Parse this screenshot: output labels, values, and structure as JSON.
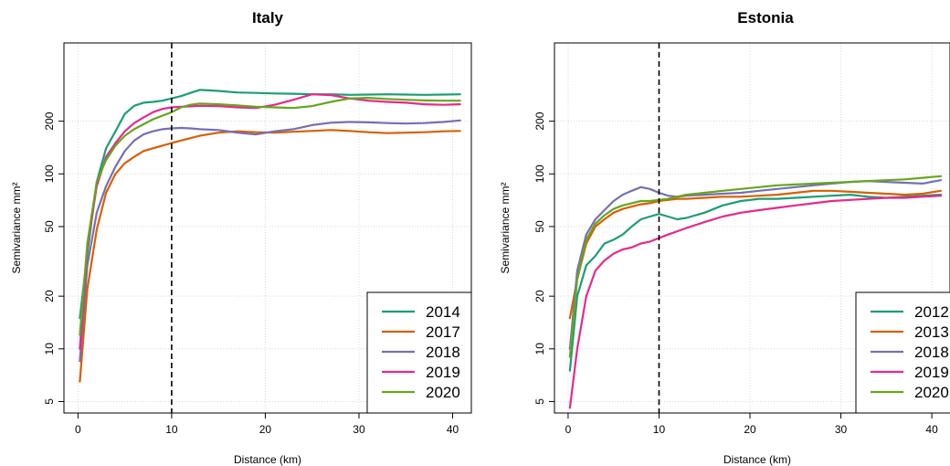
{
  "chart_data": [
    {
      "type": "line",
      "title": "Italy",
      "xlabel": "Distance (km)",
      "ylabel": "Semivariance  mm²",
      "yscale": "log",
      "xlim": [
        -1.5,
        42
      ],
      "ylim": [
        4.3,
        560
      ],
      "xticks": [
        0,
        10,
        20,
        30,
        40
      ],
      "yticks": [
        5,
        10,
        20,
        50,
        100,
        200
      ],
      "grid": true,
      "legend_position": "bottom-right",
      "vline_x": 10,
      "series": [
        {
          "name": "2014",
          "color": "#1b9e77",
          "x": [
            0.2,
            1,
            2,
            3,
            4,
            5,
            6,
            7,
            8,
            9,
            10,
            11,
            12,
            13,
            14,
            15,
            17,
            19,
            21,
            23,
            25,
            27,
            29,
            31,
            33,
            35,
            37,
            39,
            40.8
          ],
          "y": [
            15,
            35,
            90,
            140,
            175,
            220,
            245,
            255,
            258,
            262,
            270,
            278,
            290,
            302,
            300,
            298,
            292,
            290,
            288,
            287,
            285,
            285,
            283,
            284,
            285,
            284,
            283,
            284,
            285
          ]
        },
        {
          "name": "2017",
          "color": "#d95f02",
          "x": [
            0.2,
            1,
            2,
            3,
            4,
            5,
            6,
            7,
            8,
            9,
            10,
            11,
            12,
            13,
            15,
            17,
            19,
            21,
            23,
            25,
            27,
            29,
            31,
            33,
            35,
            37,
            39,
            40.8
          ],
          "y": [
            6.5,
            22,
            48,
            78,
            100,
            115,
            125,
            135,
            140,
            145,
            150,
            155,
            160,
            165,
            172,
            175,
            173,
            172,
            174,
            176,
            178,
            176,
            173,
            171,
            172,
            173,
            175,
            176
          ]
        },
        {
          "name": "2018",
          "color": "#7570b3",
          "x": [
            0.2,
            1,
            2,
            3,
            4,
            5,
            6,
            7,
            8,
            9,
            10,
            11,
            12,
            13,
            15,
            17,
            19,
            21,
            23,
            25,
            27,
            29,
            31,
            33,
            35,
            37,
            39,
            40.8
          ],
          "y": [
            8.5,
            30,
            60,
            85,
            110,
            135,
            155,
            168,
            175,
            180,
            182,
            183,
            182,
            180,
            178,
            172,
            168,
            175,
            180,
            190,
            196,
            198,
            197,
            195,
            194,
            195,
            198,
            202
          ]
        },
        {
          "name": "2019",
          "color": "#e7298a",
          "x": [
            0.2,
            1,
            2,
            3,
            4,
            5,
            6,
            7,
            8,
            9,
            10,
            11,
            12,
            13,
            15,
            17,
            19,
            21,
            23,
            25,
            27,
            29,
            31,
            33,
            35,
            37,
            39,
            40.8
          ],
          "y": [
            10,
            38,
            85,
            125,
            150,
            175,
            195,
            210,
            225,
            235,
            240,
            242,
            243,
            245,
            244,
            240,
            238,
            248,
            265,
            285,
            282,
            270,
            262,
            258,
            255,
            250,
            248,
            250
          ]
        },
        {
          "name": "2020",
          "color": "#66a61e",
          "x": [
            0.2,
            1,
            2,
            3,
            4,
            5,
            6,
            7,
            8,
            9,
            10,
            11,
            12,
            13,
            15,
            17,
            19,
            21,
            23,
            25,
            27,
            29,
            31,
            33,
            35,
            37,
            39,
            40.8
          ],
          "y": [
            12,
            40,
            90,
            120,
            145,
            165,
            180,
            192,
            205,
            215,
            225,
            240,
            248,
            252,
            250,
            246,
            242,
            240,
            238,
            244,
            258,
            270,
            272,
            268,
            265,
            263,
            262,
            262
          ]
        }
      ],
      "legend": [
        "2014",
        "2017",
        "2018",
        "2019",
        "2020"
      ]
    },
    {
      "type": "line",
      "title": "Estonia",
      "xlabel": "Distance (km)",
      "ylabel": "Semivariance  mm²",
      "yscale": "log",
      "xlim": [
        -1.5,
        42
      ],
      "ylim": [
        4.3,
        560
      ],
      "xticks": [
        0,
        10,
        20,
        30,
        40
      ],
      "yticks": [
        5,
        10,
        20,
        50,
        100,
        200
      ],
      "grid": true,
      "legend_position": "bottom-right",
      "vline_x": 10,
      "series": [
        {
          "name": "2012",
          "color": "#1b9e77",
          "x": [
            0.2,
            1,
            2,
            3,
            4,
            5,
            6,
            7,
            8,
            9,
            10,
            11,
            12,
            13,
            15,
            17,
            19,
            21,
            23,
            25,
            27,
            29,
            31,
            33,
            35,
            37,
            39,
            41
          ],
          "y": [
            7.5,
            20,
            30,
            34,
            40,
            42,
            45,
            50,
            55,
            57,
            59,
            57,
            55,
            56,
            60,
            66,
            70,
            72,
            72,
            73,
            74,
            75,
            76,
            74,
            73,
            74,
            75,
            76
          ]
        },
        {
          "name": "2013",
          "color": "#d95f02",
          "x": [
            0.2,
            1,
            2,
            3,
            4,
            5,
            6,
            7,
            8,
            9,
            10,
            11,
            12,
            13,
            15,
            17,
            19,
            21,
            23,
            25,
            27,
            29,
            31,
            33,
            35,
            37,
            39,
            41
          ],
          "y": [
            15,
            25,
            40,
            50,
            55,
            60,
            63,
            65,
            67,
            68,
            70,
            71,
            72,
            72,
            73,
            74,
            74,
            75,
            76,
            78,
            80,
            80,
            79,
            78,
            77,
            76,
            77,
            80
          ]
        },
        {
          "name": "2018",
          "color": "#7570b3",
          "x": [
            0.2,
            1,
            2,
            3,
            4,
            5,
            6,
            7,
            8,
            9,
            10,
            11,
            12,
            13,
            15,
            17,
            19,
            21,
            23,
            25,
            27,
            29,
            31,
            33,
            35,
            37,
            39,
            41
          ],
          "y": [
            10,
            28,
            45,
            55,
            62,
            70,
            76,
            80,
            84,
            82,
            78,
            75,
            74,
            75,
            76,
            77,
            78,
            80,
            82,
            84,
            86,
            88,
            90,
            91,
            90,
            89,
            88,
            92
          ]
        },
        {
          "name": "2019",
          "color": "#e7298a",
          "x": [
            0.2,
            1,
            2,
            3,
            4,
            5,
            6,
            7,
            8,
            9,
            10,
            11,
            12,
            13,
            15,
            17,
            19,
            21,
            23,
            25,
            27,
            29,
            31,
            33,
            35,
            37,
            39,
            41
          ],
          "y": [
            4.6,
            10,
            20,
            28,
            32,
            35,
            37,
            38,
            40,
            41,
            43,
            45,
            47,
            49,
            53,
            57,
            60,
            62,
            64,
            66,
            68,
            70,
            71,
            72,
            73,
            73,
            74,
            75
          ]
        },
        {
          "name": "2020",
          "color": "#66a61e",
          "x": [
            0.2,
            1,
            2,
            3,
            4,
            5,
            6,
            7,
            8,
            9,
            10,
            11,
            12,
            13,
            15,
            17,
            19,
            21,
            23,
            25,
            27,
            29,
            31,
            33,
            35,
            37,
            39,
            41
          ],
          "y": [
            9,
            25,
            42,
            52,
            58,
            63,
            66,
            68,
            70,
            70,
            71,
            72,
            74,
            76,
            78,
            80,
            82,
            84,
            86,
            87,
            88,
            89,
            90,
            91,
            92,
            93,
            95,
            97
          ]
        }
      ],
      "legend": [
        "2012",
        "2013",
        "2018",
        "2019",
        "2020"
      ]
    }
  ]
}
